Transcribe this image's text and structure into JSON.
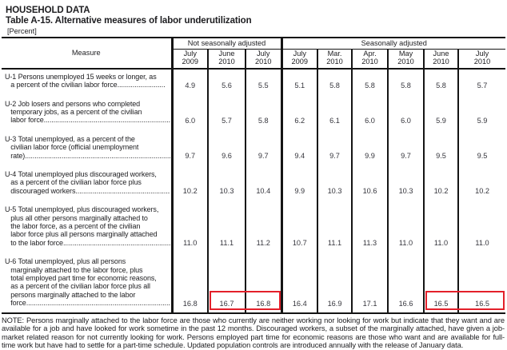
{
  "header": {
    "kicker": "HOUSEHOLD DATA",
    "title": "Table A-15. Alternative measures of labor underutilization",
    "unit": "[Percent]"
  },
  "table": {
    "measure_header": "Measure",
    "groups": [
      {
        "label": "Not seasonally adjusted",
        "span": 3
      },
      {
        "label": "Seasonally adjusted",
        "span": 6
      }
    ],
    "columns": [
      "July\n2009",
      "June\n2010",
      "July\n2010",
      "July\n2009",
      "Mar.\n2010",
      "Apr.\n2010",
      "May\n2010",
      "June\n2010",
      "July\n2010"
    ],
    "rows": [
      {
        "measure": "U-1 Persons unemployed 15 weeks or longer, as\n   a percent of the civilian labor force.........................",
        "values": [
          "4.9",
          "5.6",
          "5.5",
          "5.1",
          "5.8",
          "5.8",
          "5.8",
          "5.8",
          "5.7"
        ]
      },
      {
        "measure": "U-2 Job losers and persons who completed\n   temporary jobs, as a percent of the civilian\n   labor force......................................................................",
        "values": [
          "6.0",
          "5.7",
          "5.8",
          "6.2",
          "6.1",
          "6.0",
          "6.0",
          "5.9",
          "5.9"
        ]
      },
      {
        "measure": "U-3 Total unemployed, as a percent of the\n   civilian labor force (official unemployment\n   rate)...............................................................................",
        "values": [
          "9.7",
          "9.6",
          "9.7",
          "9.4",
          "9.7",
          "9.9",
          "9.7",
          "9.5",
          "9.5"
        ]
      },
      {
        "measure": "U-4 Total unemployed plus discouraged workers,\n   as a percent of the civilian labor force plus\n   discouraged workers.......................................................",
        "values": [
          "10.2",
          "10.3",
          "10.4",
          "9.9",
          "10.3",
          "10.6",
          "10.3",
          "10.2",
          "10.2"
        ]
      },
      {
        "measure": "U-5 Total unemployed, plus discouraged workers,\n   plus all other persons marginally attached to\n   the labor force, as a percent of the civilian\n   labor force plus all persons marginally attached\n   to the labor force...........................................................",
        "values": [
          "11.0",
          "11.1",
          "11.2",
          "10.7",
          "11.1",
          "11.3",
          "11.0",
          "11.0",
          "11.0"
        ]
      },
      {
        "measure": "U-6 Total unemployed, plus all persons\n   marginally attached to the labor force, plus\n   total employed part time for economic reasons,\n   as a percent of the civilian labor force plus all\n   persons marginally attached to the labor\n   force...............................................................................",
        "values": [
          "16.8",
          "16.7",
          "16.8",
          "16.4",
          "16.9",
          "17.1",
          "16.6",
          "16.5",
          "16.5"
        ]
      }
    ],
    "highlights": [
      {
        "row": 5,
        "cols": [
          1,
          2
        ]
      },
      {
        "row": 5,
        "cols": [
          7,
          8
        ]
      }
    ],
    "highlight_color": "#e3202a"
  },
  "note": "NOTE: Persons marginally attached to the labor force are those who currently are neither working nor looking for work but indicate that they want and are available for a job and have looked for work sometime in the past 12 months. Discouraged workers, a subset of the marginally attached, have given a job-market related reason for not currently looking for work. Persons employed part time for economic reasons are those who want and are available for full-time work but have had to settle for a part-time schedule. Updated population controls are introduced annually with the release of January data."
}
